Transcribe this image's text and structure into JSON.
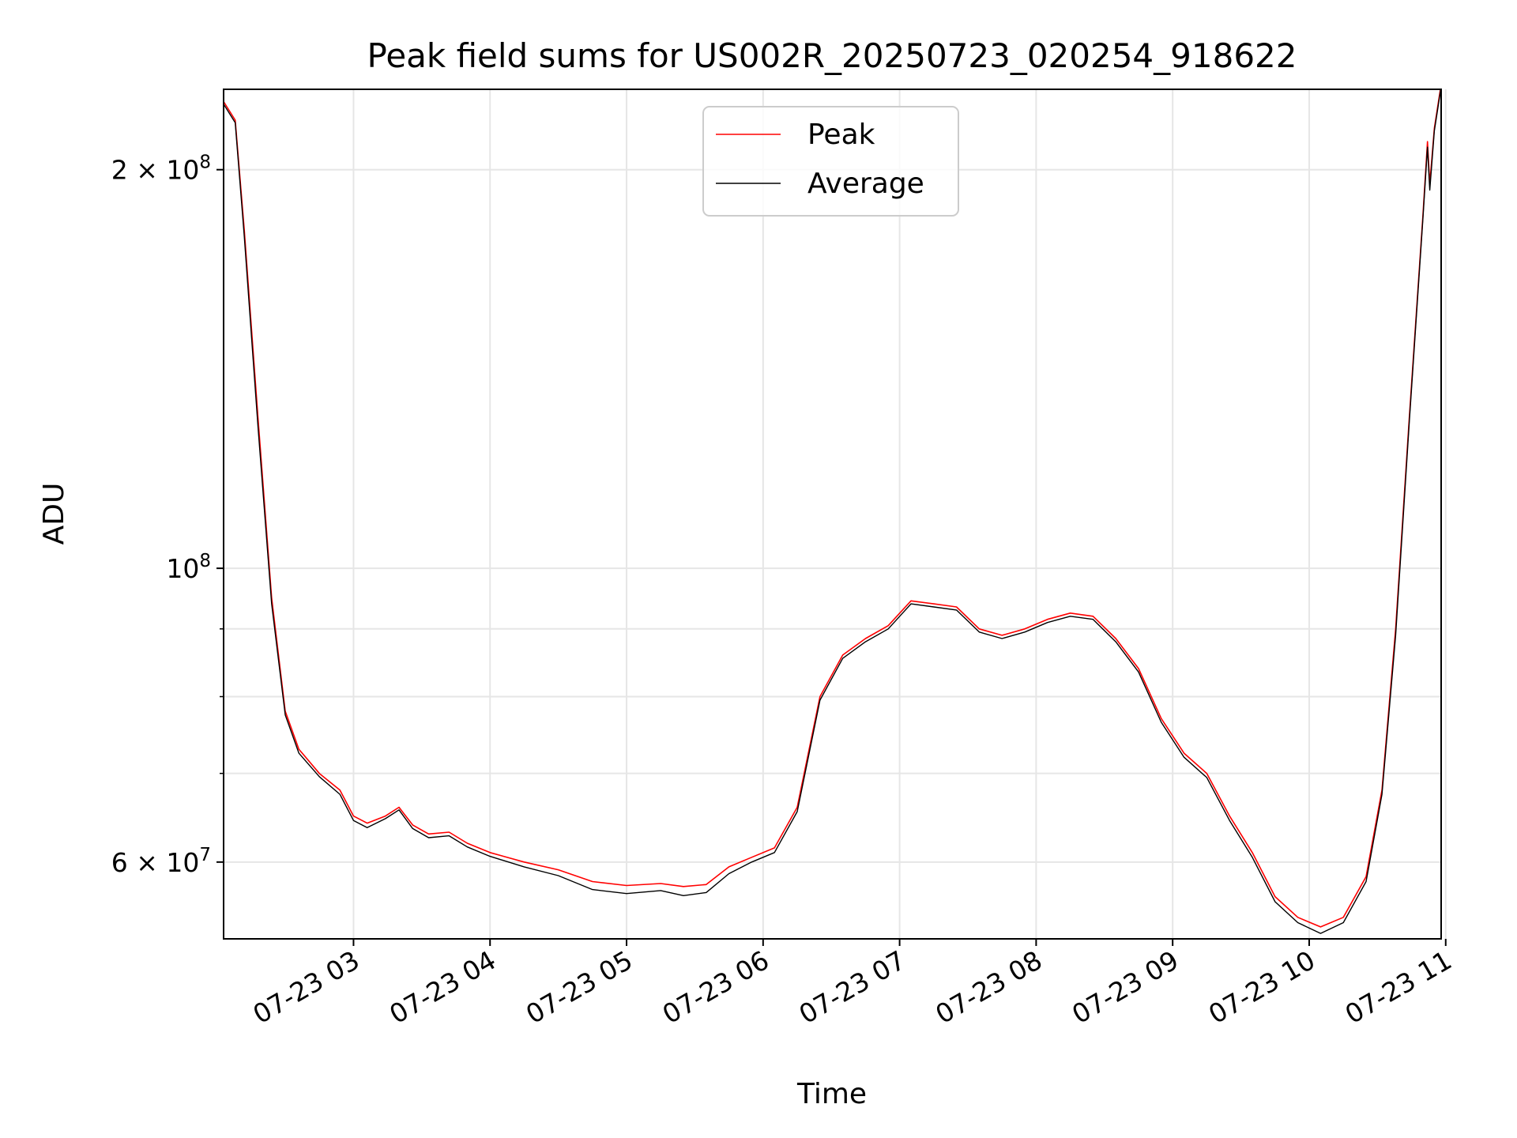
{
  "chart_data": {
    "type": "line",
    "title": "Peak field sums for US002R_20250723_020254_918622",
    "xlabel": "Time",
    "ylabel": "ADU",
    "x_axis": {
      "type": "datetime",
      "start": "2025-07-23T02:02:54",
      "end": "2025-07-23T10:58:00",
      "ticks": [
        {
          "time": "2025-07-23T03:00:00",
          "label": "07-23 03"
        },
        {
          "time": "2025-07-23T04:00:00",
          "label": "07-23 04"
        },
        {
          "time": "2025-07-23T05:00:00",
          "label": "07-23 05"
        },
        {
          "time": "2025-07-23T06:00:00",
          "label": "07-23 06"
        },
        {
          "time": "2025-07-23T07:00:00",
          "label": "07-23 07"
        },
        {
          "time": "2025-07-23T08:00:00",
          "label": "07-23 08"
        },
        {
          "time": "2025-07-23T09:00:00",
          "label": "07-23 09"
        },
        {
          "time": "2025-07-23T10:00:00",
          "label": "07-23 10"
        },
        {
          "time": "2025-07-23T11:00:00",
          "label": "07-23 11"
        }
      ]
    },
    "y_axis": {
      "scale": "log",
      "ylim": [
        52500000,
        230000000
      ],
      "major_ticks": [
        {
          "value": 60000000,
          "label": "6 × 10",
          "exp": "7"
        },
        {
          "value": 100000000,
          "label": "10",
          "exp": "8"
        },
        {
          "value": 200000000,
          "label": "2 × 10",
          "exp": "8"
        }
      ],
      "minor_ticks": [
        70000000,
        80000000,
        90000000
      ]
    },
    "grid": true,
    "legend": {
      "position": "upper center"
    },
    "series": [
      {
        "name": "Peak",
        "color": "#ff0000",
        "points": [
          [
            "2025-07-23T02:03:00",
            225000000
          ],
          [
            "2025-07-23T02:08:00",
            218000000
          ],
          [
            "2025-07-23T02:12:00",
            180000000
          ],
          [
            "2025-07-23T02:18:00",
            130000000
          ],
          [
            "2025-07-23T02:24:00",
            95000000
          ],
          [
            "2025-07-23T02:30:00",
            78000000
          ],
          [
            "2025-07-23T02:36:00",
            73000000
          ],
          [
            "2025-07-23T02:45:00",
            70000000
          ],
          [
            "2025-07-23T02:54:00",
            68000000
          ],
          [
            "2025-07-23T03:00:00",
            65000000
          ],
          [
            "2025-07-23T03:06:00",
            64200000
          ],
          [
            "2025-07-23T03:14:00",
            65000000
          ],
          [
            "2025-07-23T03:20:00",
            66000000
          ],
          [
            "2025-07-23T03:26:00",
            64000000
          ],
          [
            "2025-07-23T03:33:00",
            63000000
          ],
          [
            "2025-07-23T03:42:00",
            63200000
          ],
          [
            "2025-07-23T03:50:00",
            62000000
          ],
          [
            "2025-07-23T04:00:00",
            61000000
          ],
          [
            "2025-07-23T04:15:00",
            60000000
          ],
          [
            "2025-07-23T04:30:00",
            59200000
          ],
          [
            "2025-07-23T04:45:00",
            58000000
          ],
          [
            "2025-07-23T05:00:00",
            57600000
          ],
          [
            "2025-07-23T05:15:00",
            57800000
          ],
          [
            "2025-07-23T05:25:00",
            57500000
          ],
          [
            "2025-07-23T05:35:00",
            57700000
          ],
          [
            "2025-07-23T05:45:00",
            59500000
          ],
          [
            "2025-07-23T05:55:00",
            60500000
          ],
          [
            "2025-07-23T06:05:00",
            61500000
          ],
          [
            "2025-07-23T06:15:00",
            66000000
          ],
          [
            "2025-07-23T06:25:00",
            80000000
          ],
          [
            "2025-07-23T06:35:00",
            86000000
          ],
          [
            "2025-07-23T06:45:00",
            88500000
          ],
          [
            "2025-07-23T06:55:00",
            90500000
          ],
          [
            "2025-07-23T07:05:00",
            94500000
          ],
          [
            "2025-07-23T07:15:00",
            94000000
          ],
          [
            "2025-07-23T07:25:00",
            93500000
          ],
          [
            "2025-07-23T07:35:00",
            90000000
          ],
          [
            "2025-07-23T07:45:00",
            89000000
          ],
          [
            "2025-07-23T07:55:00",
            90000000
          ],
          [
            "2025-07-23T08:05:00",
            91500000
          ],
          [
            "2025-07-23T08:15:00",
            92500000
          ],
          [
            "2025-07-23T08:25:00",
            92000000
          ],
          [
            "2025-07-23T08:35:00",
            88500000
          ],
          [
            "2025-07-23T08:45:00",
            84000000
          ],
          [
            "2025-07-23T08:55:00",
            77000000
          ],
          [
            "2025-07-23T09:05:00",
            72500000
          ],
          [
            "2025-07-23T09:15:00",
            70000000
          ],
          [
            "2025-07-23T09:25:00",
            65000000
          ],
          [
            "2025-07-23T09:35:00",
            61000000
          ],
          [
            "2025-07-23T09:45:00",
            56500000
          ],
          [
            "2025-07-23T09:55:00",
            54500000
          ],
          [
            "2025-07-23T10:05:00",
            53600000
          ],
          [
            "2025-07-23T10:15:00",
            54500000
          ],
          [
            "2025-07-23T10:25:00",
            58500000
          ],
          [
            "2025-07-23T10:32:00",
            68000000
          ],
          [
            "2025-07-23T10:38:00",
            90000000
          ],
          [
            "2025-07-23T10:44:00",
            130000000
          ],
          [
            "2025-07-23T10:50:00",
            185000000
          ],
          [
            "2025-07-23T10:52:00",
            210000000
          ],
          [
            "2025-07-23T10:53:00",
            195000000
          ],
          [
            "2025-07-23T10:55:00",
            215000000
          ],
          [
            "2025-07-23T10:58:00",
            232000000
          ]
        ]
      },
      {
        "name": "Average",
        "color": "#000000",
        "points": [
          [
            "2025-07-23T02:03:00",
            224000000
          ],
          [
            "2025-07-23T02:08:00",
            217000000
          ],
          [
            "2025-07-23T02:12:00",
            178000000
          ],
          [
            "2025-07-23T02:18:00",
            128000000
          ],
          [
            "2025-07-23T02:24:00",
            94000000
          ],
          [
            "2025-07-23T02:30:00",
            77500000
          ],
          [
            "2025-07-23T02:36:00",
            72500000
          ],
          [
            "2025-07-23T02:45:00",
            69600000
          ],
          [
            "2025-07-23T02:54:00",
            67500000
          ],
          [
            "2025-07-23T03:00:00",
            64500000
          ],
          [
            "2025-07-23T03:06:00",
            63700000
          ],
          [
            "2025-07-23T03:14:00",
            64700000
          ],
          [
            "2025-07-23T03:20:00",
            65700000
          ],
          [
            "2025-07-23T03:26:00",
            63600000
          ],
          [
            "2025-07-23T03:33:00",
            62600000
          ],
          [
            "2025-07-23T03:42:00",
            62800000
          ],
          [
            "2025-07-23T03:50:00",
            61600000
          ],
          [
            "2025-07-23T04:00:00",
            60600000
          ],
          [
            "2025-07-23T04:15:00",
            59500000
          ],
          [
            "2025-07-23T04:30:00",
            58600000
          ],
          [
            "2025-07-23T04:45:00",
            57200000
          ],
          [
            "2025-07-23T05:00:00",
            56800000
          ],
          [
            "2025-07-23T05:15:00",
            57100000
          ],
          [
            "2025-07-23T05:25:00",
            56600000
          ],
          [
            "2025-07-23T05:35:00",
            56900000
          ],
          [
            "2025-07-23T05:45:00",
            58800000
          ],
          [
            "2025-07-23T05:55:00",
            60000000
          ],
          [
            "2025-07-23T06:05:00",
            61000000
          ],
          [
            "2025-07-23T06:15:00",
            65500000
          ],
          [
            "2025-07-23T06:25:00",
            79500000
          ],
          [
            "2025-07-23T06:35:00",
            85500000
          ],
          [
            "2025-07-23T06:45:00",
            88000000
          ],
          [
            "2025-07-23T06:55:00",
            90000000
          ],
          [
            "2025-07-23T07:05:00",
            94000000
          ],
          [
            "2025-07-23T07:15:00",
            93500000
          ],
          [
            "2025-07-23T07:25:00",
            93000000
          ],
          [
            "2025-07-23T07:35:00",
            89500000
          ],
          [
            "2025-07-23T07:45:00",
            88500000
          ],
          [
            "2025-07-23T07:55:00",
            89500000
          ],
          [
            "2025-07-23T08:05:00",
            91000000
          ],
          [
            "2025-07-23T08:15:00",
            92000000
          ],
          [
            "2025-07-23T08:25:00",
            91500000
          ],
          [
            "2025-07-23T08:35:00",
            88000000
          ],
          [
            "2025-07-23T08:45:00",
            83500000
          ],
          [
            "2025-07-23T08:55:00",
            76500000
          ],
          [
            "2025-07-23T09:05:00",
            72000000
          ],
          [
            "2025-07-23T09:15:00",
            69500000
          ],
          [
            "2025-07-23T09:25:00",
            64500000
          ],
          [
            "2025-07-23T09:35:00",
            60500000
          ],
          [
            "2025-07-23T09:45:00",
            56000000
          ],
          [
            "2025-07-23T09:55:00",
            54000000
          ],
          [
            "2025-07-23T10:05:00",
            53000000
          ],
          [
            "2025-07-23T10:15:00",
            54000000
          ],
          [
            "2025-07-23T10:25:00",
            58000000
          ],
          [
            "2025-07-23T10:32:00",
            67500000
          ],
          [
            "2025-07-23T10:38:00",
            89000000
          ],
          [
            "2025-07-23T10:44:00",
            129000000
          ],
          [
            "2025-07-23T10:50:00",
            184000000
          ],
          [
            "2025-07-23T10:52:00",
            208000000
          ],
          [
            "2025-07-23T10:53:00",
            193000000
          ],
          [
            "2025-07-23T10:55:00",
            214000000
          ],
          [
            "2025-07-23T10:58:00",
            231000000
          ]
        ]
      }
    ]
  }
}
